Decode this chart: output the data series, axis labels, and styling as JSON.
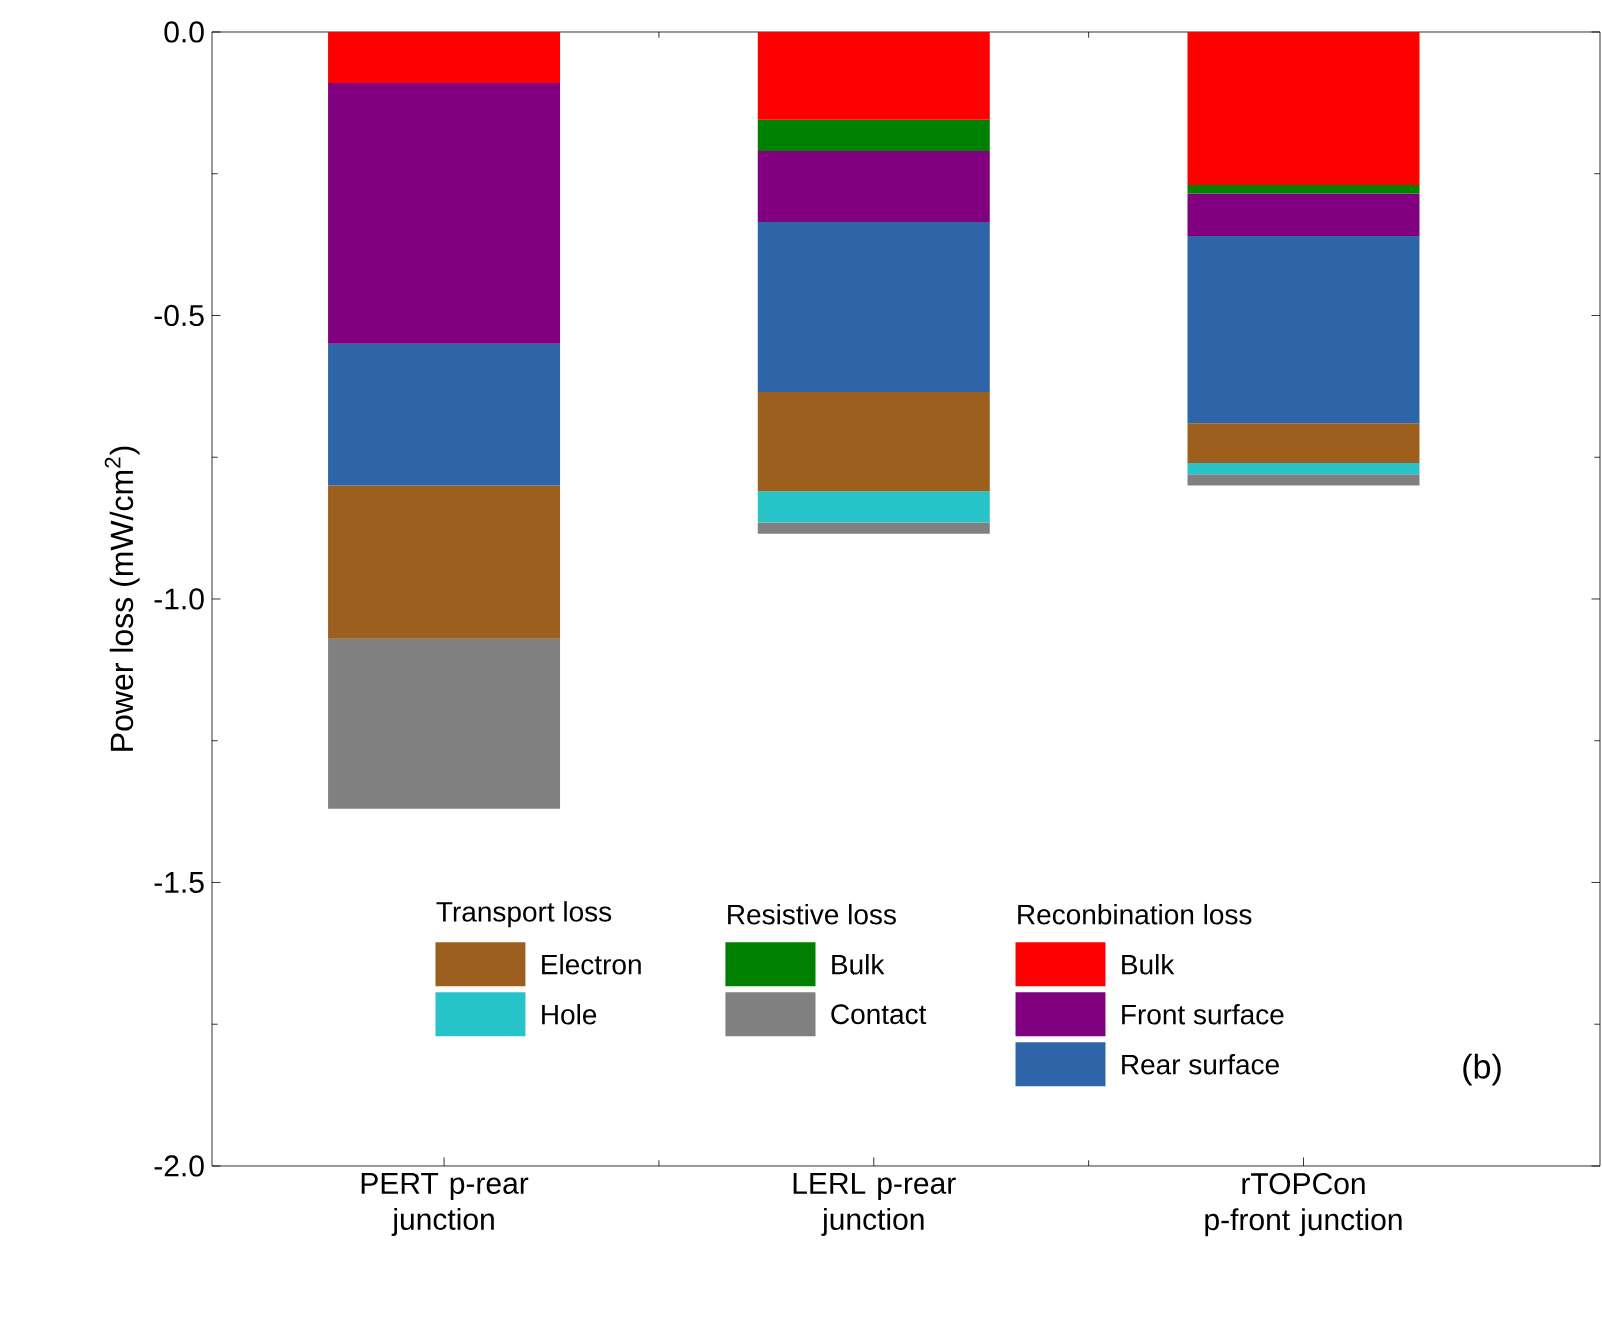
{
  "chart_data": {
    "type": "bar",
    "stacked": true,
    "ylabel": "Power loss (mW/cm$^{2}$)",
    "categories": [
      "PERT p-rear junction",
      "LERL p-rear junction",
      "rTOPCon p-front junction"
    ],
    "series": [
      {
        "name": "Bulk",
        "color": "#ff0000",
        "values": [
          -0.09,
          -0.155,
          -0.27
        ]
      },
      {
        "name": "Bulk",
        "color": "#008000",
        "values": [
          0,
          -0.055,
          -0.015
        ]
      },
      {
        "name": "Front surface",
        "color": "#800080",
        "values": [
          -0.46,
          -0.125,
          -0.075
        ]
      },
      {
        "name": "Rear surface",
        "color": "#2e64a8",
        "values": [
          -0.25,
          -0.3,
          -0.33
        ]
      },
      {
        "name": "Electron",
        "color": "#9c5f1e",
        "values": [
          -0.27,
          -0.175,
          -0.07
        ]
      },
      {
        "name": "Hole",
        "color": "#26c4c8",
        "values": [
          0,
          -0.055,
          -0.02
        ]
      },
      {
        "name": "Contact",
        "color": "#808080",
        "values": [
          -0.3,
          -0.02,
          -0.02
        ]
      }
    ],
    "ylim": [
      -2.0,
      0.0
    ],
    "yticks": [
      {
        "value": -2.0,
        "label": "-2.0"
      },
      {
        "value": -1.5,
        "label": "-1.5"
      },
      {
        "value": -1.0,
        "label": "-1.0"
      },
      {
        "value": -0.5,
        "label": "-0.5"
      },
      {
        "value": 0.0,
        "label": "0.0"
      }
    ],
    "legend": "bottom right",
    "annotations": [
      "Transport loss",
      "Resistive loss",
      "Reconbination loss",
      "(b)"
    ]
  }
}
